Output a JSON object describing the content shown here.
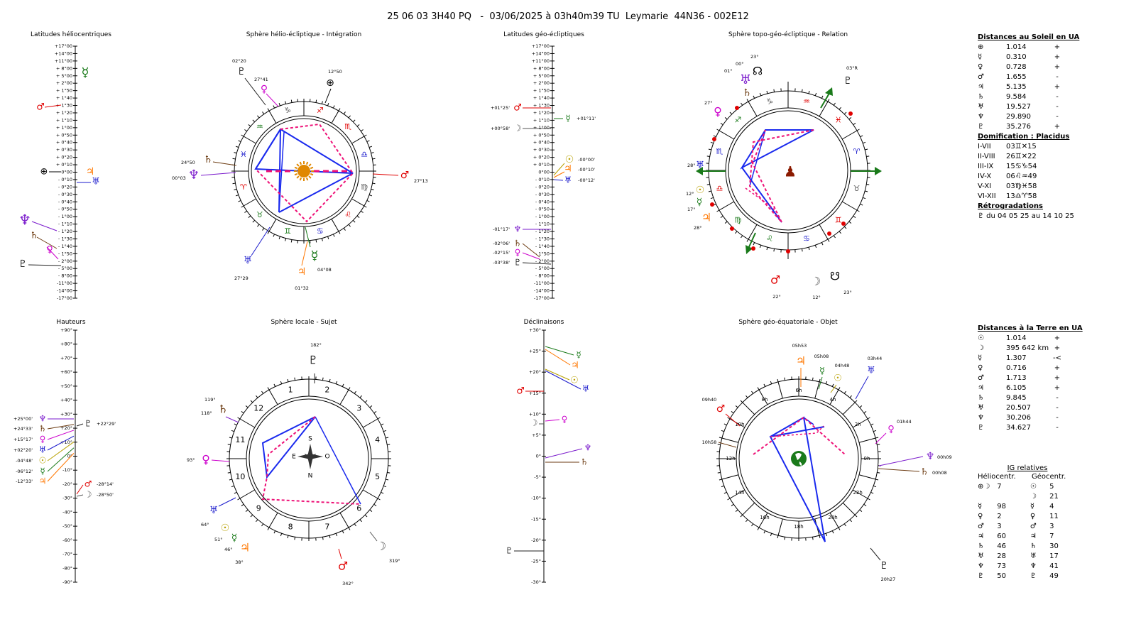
{
  "header": {
    "title": "25 06 03 3H40 PQ   -  03/06/2025 à 03h40m39 TU  Leymarie  44N36 - 002E12"
  },
  "panels": {
    "helio_lat": "Latitudes héliocentriques",
    "helio_sphere": "Sphère hélio-écliptique - Intégration",
    "geo_lat": "Latitudes géo-écliptiques",
    "topo_sphere": "Sphère topo-géo-écliptique - Relation",
    "heights": "Hauteurs",
    "local_sphere": "Sphère locale - Sujet",
    "declinations": "Déclinaisons",
    "equatorial_sphere": "Sphère géo-équatoriale - Objet"
  },
  "lat_scale": [
    "+17°00",
    "+14°00",
    "+11°00",
    "+ 8°00",
    "+ 5°00",
    "+ 2°00",
    "+ 1°50",
    "+ 1°40",
    "+ 1°30",
    "+ 1°20",
    "+ 1°10",
    "+ 1°00",
    "+ 0°50",
    "+ 0°40",
    "+ 0°30",
    "+ 0°20",
    "+ 0°10",
    "0°00",
    "- 0°10",
    "- 0°20",
    "- 0°30",
    "- 0°40",
    "- 0°50",
    "- 1°00",
    "- 1°10",
    "- 1°20",
    "- 1°30",
    "- 1°40",
    "- 1°50",
    "- 2°00",
    "- 5°00",
    "- 8°00",
    "-11°00",
    "-14°00",
    "-17°00"
  ],
  "heights_scale": [
    "+90°",
    "+80°",
    "+70°",
    "+60°",
    "+50°",
    "+40°",
    "+30°",
    "+20°",
    "+10°",
    "0°",
    "-10°",
    "-20°",
    "-30°",
    "-40°",
    "-50°",
    "-60°",
    "-70°",
    "-80°",
    "-90°"
  ],
  "decl_scale": [
    "+30°",
    "+25°",
    "+20°",
    "+15°",
    "+10°",
    "+5°",
    "0°",
    "-5°",
    "-10°",
    "-15°",
    "-20°",
    "-25°",
    "-30°"
  ],
  "geo_lat_labels": {
    "mars": "+01°25'",
    "mercury": "+01°11'",
    "moon": "+00°58'",
    "sun": "-00°00'",
    "jupiter": "-00°10'",
    "uranus": "-00°12'",
    "neptune": "-01°17'",
    "saturn": "-02°06'",
    "venus": "-02°15'",
    "pluto": "-03°38'"
  },
  "helio_labels": {
    "pluto": "02°20",
    "venus": "27°41",
    "earth": "12°50",
    "saturn": "24°50",
    "neptune": "00°03",
    "mars": "27°13",
    "uranus": "27°29",
    "mercury": "04°08",
    "jupiter": "01°32"
  },
  "topo_labels": {
    "node_top": "23°",
    "zero": "00°",
    "one": "01°",
    "retro": "03°R",
    "venus": "27°",
    "uranus": "28°",
    "sun": "12°",
    "mercury": "17°",
    "jupiter": "28°",
    "mars": "22°",
    "moon": "12°",
    "node_bottom": "23°"
  },
  "heights_labels": {
    "neptune": "+25°00'",
    "saturn": "+24°33'",
    "venus": "+15°17'",
    "uranus": "+02°20'",
    "sun": "-04°48'",
    "mercury": "-06°12'",
    "jupiter": "-12°33'",
    "pluto": "+22°29'",
    "mars": "-28°14'",
    "moon": "-28°50'"
  },
  "local_labels": {
    "pluto": "182°",
    "saturn": "119°",
    "neptune": "118°",
    "venus": "93°",
    "uranus": "64°",
    "sun": "51°",
    "mercury": "46°",
    "jupiter": "38°",
    "moon": "319°",
    "mars": "342°",
    "south": "S",
    "east": "E",
    "west": "O",
    "north": "N"
  },
  "equatorial_labels": {
    "jupiter": "05h53",
    "mercury": "05h08",
    "sun": "04h48",
    "uranus": "03h44",
    "mars": "09h40",
    "saturn_left": "10h58",
    "venus": "01h44",
    "neptune": "00h09",
    "saturn": "00h08",
    "pluto": "20h27"
  },
  "zodiac_signs": [
    "♈",
    "♉",
    "♊",
    "♋",
    "♌",
    "♍",
    "♎",
    "♏",
    "♐",
    "♑",
    "♒",
    "♓"
  ],
  "houses": [
    "1",
    "2",
    "3",
    "4",
    "5",
    "6",
    "7",
    "8",
    "9",
    "10",
    "11",
    "12"
  ],
  "hours": [
    "0h",
    "2h",
    "4h",
    "6h",
    "8h",
    "10h",
    "12h",
    "14h",
    "16h",
    "18h",
    "20h",
    "22h"
  ],
  "distances_sun": {
    "title": "Distances au Soleil en UA",
    "rows": [
      {
        "g": "⊕",
        "v": "1.014",
        "s": "+"
      },
      {
        "g": "☿",
        "v": "0.310",
        "s": "+"
      },
      {
        "g": "♀",
        "v": "0.728",
        "s": "+"
      },
      {
        "g": "♂",
        "v": "1.655",
        "s": "-"
      },
      {
        "g": "♃",
        "v": "5.135",
        "s": "+"
      },
      {
        "g": "♄",
        "v": "9.584",
        "s": "-"
      },
      {
        "g": "♅",
        "v": "19.527",
        "s": "-"
      },
      {
        "g": "♆",
        "v": "29.890",
        "s": "-"
      },
      {
        "g": "♇",
        "v": "35.276",
        "s": "+"
      }
    ]
  },
  "domification": {
    "title": "Domification : Placidus",
    "rows": [
      {
        "g": "I-VII",
        "v": "03♊✕15"
      },
      {
        "g": "II-VIII",
        "v": "26♊✕22"
      },
      {
        "g": "III-IX",
        "v": "15♋♑54"
      },
      {
        "g": "IV-X",
        "v": "06♌♒49"
      },
      {
        "g": "V-XI",
        "v": "03♍♓58"
      },
      {
        "g": "VI-XII",
        "v": "13♎♈58"
      }
    ]
  },
  "retro": {
    "title": "Rétrogradations",
    "text": "♇   du 04 05 25 au 14 10 25"
  },
  "distances_earth": {
    "title": "Distances à la Terre en UA",
    "rows": [
      {
        "g": "☉",
        "v": "1.014",
        "s": "+"
      },
      {
        "g": "☽",
        "v": "395 642 km",
        "s": "+"
      },
      {
        "g": "☿",
        "v": "1.307",
        "s": "-<"
      },
      {
        "g": "♀",
        "v": "0.716",
        "s": "+"
      },
      {
        "g": "♂",
        "v": "1.713",
        "s": "+"
      },
      {
        "g": "♃",
        "v": "6.105",
        "s": "+"
      },
      {
        "g": "♄",
        "v": "9.845",
        "s": "-"
      },
      {
        "g": "♅",
        "v": "20.507",
        "s": "-"
      },
      {
        "g": "♆",
        "v": "30.206",
        "s": "-"
      },
      {
        "g": "♇",
        "v": "34.627",
        "s": "-"
      }
    ]
  },
  "ig": {
    "title": "IG relatives",
    "col1": "Héliocentr.",
    "col2": "Géocentr.",
    "rows": [
      {
        "g": "⊕☽",
        "v": "7",
        "g2": "☉",
        "v2": "5"
      },
      {
        "g": "",
        "v": "",
        "g2": "☽",
        "v2": "21"
      },
      {
        "g": "☿",
        "v": "98",
        "g2": "☿",
        "v2": "4"
      },
      {
        "g": "♀",
        "v": "2",
        "g2": "♀",
        "v2": "11"
      },
      {
        "g": "♂",
        "v": "3",
        "g2": "♂",
        "v2": "3"
      },
      {
        "g": "♃",
        "v": "60",
        "g2": "♃",
        "v2": "7"
      },
      {
        "g": "♄",
        "v": "46",
        "g2": "♄",
        "v2": "30"
      },
      {
        "g": "♅",
        "v": "28",
        "g2": "♅",
        "v2": "17"
      },
      {
        "g": "♆",
        "v": "73",
        "g2": "♆",
        "v2": "41"
      },
      {
        "g": "♇",
        "v": "50",
        "g2": "♇",
        "v2": "49"
      }
    ]
  },
  "colors": {
    "mercury": "#1a7a1a",
    "venus": "#cc00cc",
    "mars": "#e00000",
    "jupiter": "#ff7700",
    "saturn": "#6b3a10",
    "uranus": "#1a1acc",
    "neptune": "#7a1acc",
    "pluto": "#222222",
    "sun": "#b8a000",
    "moon": "#555555",
    "blue_line": "#1a2aee",
    "pink_line": "#ee1177",
    "green_arrow": "#1a7a1a"
  }
}
